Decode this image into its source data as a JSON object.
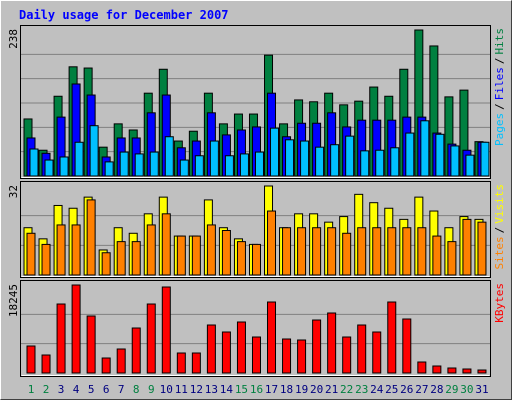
{
  "chart_data": {
    "type": "bar",
    "title": "Daily usage for December 2007",
    "categories": [
      "1",
      "2",
      "3",
      "4",
      "5",
      "6",
      "7",
      "8",
      "9",
      "10",
      "11",
      "12",
      "13",
      "14",
      "15",
      "16",
      "17",
      "18",
      "19",
      "20",
      "21",
      "22",
      "23",
      "24",
      "25",
      "26",
      "27",
      "28",
      "29",
      "30",
      "31"
    ],
    "category_colors": [
      "#008040",
      "#008040",
      "#000080",
      "#000080",
      "#000080",
      "#000080",
      "#000080",
      "#008040",
      "#008040",
      "#000080",
      "#000080",
      "#000080",
      "#000080",
      "#000080",
      "#008040",
      "#008040",
      "#000080",
      "#000080",
      "#000080",
      "#000080",
      "#000080",
      "#008040",
      "#008040",
      "#000080",
      "#000080",
      "#000080",
      "#000080",
      "#000080",
      "#008040",
      "#008040",
      "#000080"
    ],
    "legend_separator": "/",
    "panels": [
      {
        "ylim": [
          0,
          238
        ],
        "yticks": [
          238
        ],
        "series": [
          {
            "name": "Hits",
            "color": "#008040",
            "values": [
              93,
              42,
              130,
              178,
              176,
              47,
              85,
              75,
              135,
              174,
              57,
              73,
              135,
              85,
              101,
              101,
              197,
              85,
              124,
              121,
              135,
              116,
              122,
              145,
              130,
              174,
              238,
              212,
              129,
              140,
              56
            ]
          },
          {
            "name": "Files",
            "color": "#0000ff",
            "values": [
              62,
              37,
              96,
              150,
              132,
              31,
              62,
              62,
              103,
              132,
              46,
              57,
              103,
              67,
              75,
              80,
              135,
              64,
              86,
              86,
              103,
              80,
              91,
              91,
              91,
              96,
              96,
              70,
              52,
              42,
              55
            ]
          },
          {
            "name": "Pages",
            "color": "#00c0ff",
            "values": [
              44,
              26,
              31,
              55,
              82,
              23,
              39,
              36,
              39,
              64,
              26,
              33,
              57,
              33,
              36,
              39,
              78,
              59,
              57,
              47,
              51,
              65,
              41,
              42,
              46,
              70,
              90,
              68,
              49,
              34,
              55
            ]
          }
        ]
      },
      {
        "ylim": [
          0,
          32
        ],
        "yticks": [
          32
        ],
        "series": [
          {
            "name": "Visits",
            "color": "#ffff00",
            "values": [
              17,
              13,
              25,
              24,
              28,
              9,
              17,
              15,
              22,
              28,
              14,
              14,
              27,
              17,
              13,
              11,
              32,
              17,
              22,
              22,
              19,
              21,
              29,
              26,
              24,
              20,
              28,
              23,
              17,
              21,
              20
            ]
          },
          {
            "name": "Sites",
            "color": "#ff8000",
            "values": [
              15,
              11,
              18,
              18,
              27,
              8,
              12,
              12,
              18,
              22,
              14,
              14,
              18,
              16,
              12,
              11,
              23,
              17,
              17,
              17,
              17,
              15,
              17,
              17,
              17,
              17,
              17,
              14,
              12,
              20,
              19
            ]
          }
        ]
      },
      {
        "ylim": [
          0,
          18245
        ],
        "yticks": [
          18245
        ],
        "series": [
          {
            "name": "KBytes",
            "color": "#ff0000",
            "values": [
              5598,
              3732,
              14304,
              18245,
              11817,
              3110,
              4976,
              9329,
              14304,
              17829,
              4146,
              4146,
              9951,
              8500,
              10573,
              7463,
              14719,
              7049,
              6841,
              10988,
              12439,
              7463,
              9951,
              8500,
              14719,
              11195,
              2280,
              1451,
              1037,
              829,
              622
            ]
          }
        ]
      }
    ]
  }
}
